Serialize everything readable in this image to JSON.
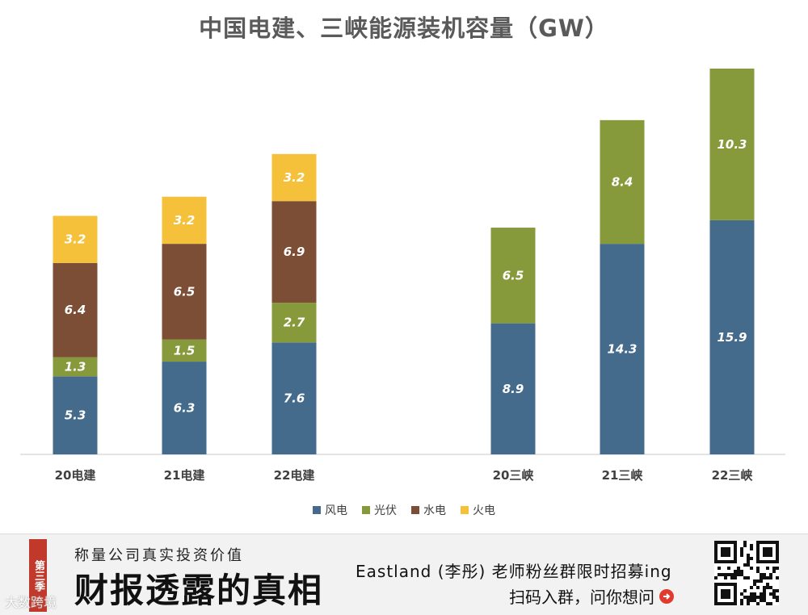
{
  "chart_data": {
    "type": "bar",
    "stacked": true,
    "title": "中国电建、三峡能源装机容量（GW）",
    "categories": [
      "20电建",
      "21电建",
      "22电建",
      "20三峡",
      "21三峡",
      "22三峡"
    ],
    "series": [
      {
        "name": "风电",
        "color": "#446b8c",
        "values": [
          5.3,
          6.3,
          7.6,
          8.9,
          14.3,
          15.9
        ]
      },
      {
        "name": "光伏",
        "color": "#869a3c",
        "values": [
          1.3,
          1.5,
          2.7,
          6.5,
          8.4,
          10.3
        ]
      },
      {
        "name": "水电",
        "color": "#7b4e35",
        "values": [
          6.4,
          6.5,
          6.9,
          null,
          null,
          null
        ]
      },
      {
        "name": "火电",
        "color": "#f5c13b",
        "values": [
          3.2,
          3.2,
          3.2,
          null,
          null,
          null
        ]
      }
    ],
    "xlabel": "",
    "ylabel": "",
    "ylim": [
      0,
      26.2
    ],
    "grid": false,
    "legend_position": "bottom"
  },
  "banner": {
    "season": "第三季",
    "subtitle": "称量公司真实投资价值",
    "main_title": "财报透露的真相",
    "promo": "Eastland (李彤) 老师粉丝群限时招募ing",
    "scan_text": "扫码入群，问你想问"
  },
  "watermark": "大数跨境"
}
